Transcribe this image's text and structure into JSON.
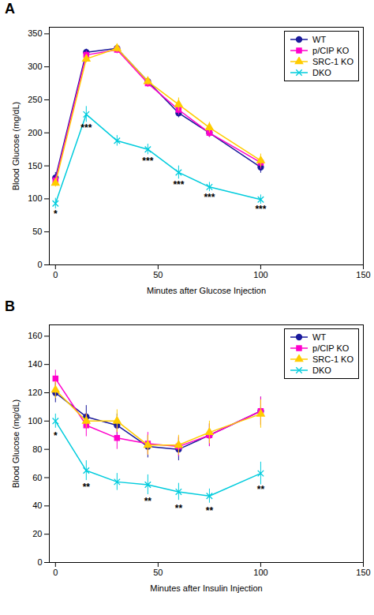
{
  "chart_data": [
    {
      "type": "line",
      "title": "A",
      "xlabel": "Minutes after Glucose Injection",
      "ylabel": "Blood Glucose (mg/dL)",
      "xlim": [
        -3,
        150
      ],
      "ylim": [
        0,
        360
      ],
      "xticks": [
        0,
        50,
        100,
        150
      ],
      "yticks": [
        0,
        50,
        100,
        150,
        200,
        250,
        300,
        350
      ],
      "grid": false,
      "legend": "upper right",
      "x": [
        0,
        15,
        30,
        45,
        60,
        75,
        100
      ],
      "series": [
        {
          "name": "WT",
          "color": "#1a1a9c",
          "marker": "circle",
          "line_style": "solid",
          "values": [
            132,
            322,
            328,
            278,
            230,
            200,
            148
          ],
          "errors": [
            8,
            5,
            5,
            6,
            7,
            6,
            9
          ]
        },
        {
          "name": "p/CIP KO",
          "color": "#ff00cc",
          "marker": "square",
          "line_style": "solid",
          "values": [
            128,
            318,
            326,
            275,
            235,
            200,
            155
          ],
          "errors": [
            7,
            6,
            6,
            6,
            8,
            7,
            10
          ]
        },
        {
          "name": "SRC-1 KO",
          "color": "#ffcc00",
          "marker": "triangle",
          "line_style": "solid",
          "values": [
            124,
            312,
            328,
            278,
            243,
            208,
            158
          ],
          "errors": [
            6,
            6,
            6,
            6,
            10,
            8,
            10
          ]
        },
        {
          "name": "DKO",
          "color": "#00ccdd",
          "marker": "times",
          "line_style": "solid",
          "values": [
            93,
            228,
            188,
            175,
            140,
            118,
            99
          ],
          "errors": [
            8,
            12,
            8,
            8,
            10,
            7,
            7
          ]
        }
      ],
      "annotations": [
        {
          "x": 0,
          "y": 82,
          "text": "*"
        },
        {
          "x": 15,
          "y": 213,
          "text": "***"
        },
        {
          "x": 45,
          "y": 163,
          "text": "***"
        },
        {
          "x": 60,
          "y": 127,
          "text": "***"
        },
        {
          "x": 75,
          "y": 108,
          "text": "***"
        },
        {
          "x": 100,
          "y": 90,
          "text": "***"
        }
      ]
    },
    {
      "type": "line",
      "title": "B",
      "xlabel": "Minutes after Insulin Injection",
      "ylabel": "Blood Glucose (mg/dL)",
      "xlim": [
        -3,
        150
      ],
      "ylim": [
        0,
        168
      ],
      "xticks": [
        0,
        50,
        100,
        150
      ],
      "yticks": [
        0,
        20,
        40,
        60,
        80,
        100,
        120,
        140,
        160
      ],
      "grid": false,
      "legend": "upper right",
      "x": [
        0,
        15,
        30,
        45,
        60,
        75,
        100
      ],
      "series": [
        {
          "name": "WT",
          "color": "#1a1a9c",
          "marker": "circle",
          "line_style": "solid",
          "values": [
            120,
            103,
            97,
            82,
            80,
            90,
            107
          ],
          "errors": [
            7,
            8,
            8,
            8,
            8,
            8,
            10
          ]
        },
        {
          "name": "p/CIP KO",
          "color": "#ff00cc",
          "marker": "square",
          "line_style": "solid",
          "values": [
            130,
            97,
            88,
            84,
            82,
            90,
            107
          ],
          "errors": [
            6,
            8,
            8,
            8,
            7,
            8,
            10
          ]
        },
        {
          "name": "SRC-1 KO",
          "color": "#ffcc00",
          "marker": "triangle",
          "line_style": "solid",
          "values": [
            122,
            100,
            100,
            83,
            83,
            92,
            105
          ],
          "errors": [
            6,
            5,
            8,
            7,
            7,
            8,
            10
          ]
        },
        {
          "name": "DKO",
          "color": "#00ccdd",
          "marker": "times",
          "line_style": "solid",
          "values": [
            100,
            65,
            57,
            55,
            50,
            47,
            63
          ],
          "errors": [
            5,
            7,
            6,
            7,
            6,
            5,
            8
          ]
        }
      ],
      "annotations": [
        {
          "x": 0,
          "y": 92,
          "text": "*"
        },
        {
          "x": 15,
          "y": 56,
          "text": "**"
        },
        {
          "x": 45,
          "y": 46,
          "text": "**"
        },
        {
          "x": 60,
          "y": 41,
          "text": "**"
        },
        {
          "x": 75,
          "y": 39,
          "text": "**"
        },
        {
          "x": 100,
          "y": 54,
          "text": "**"
        }
      ]
    }
  ]
}
